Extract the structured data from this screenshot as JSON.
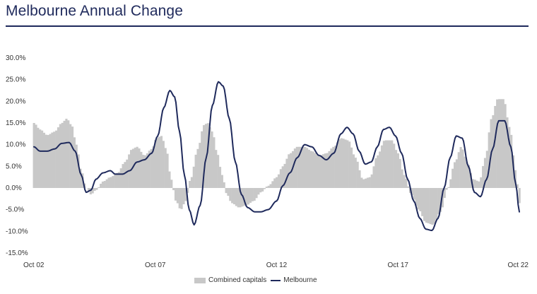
{
  "title": "Melbourne Annual Change",
  "chart_data": {
    "type": "area",
    "title": "Melbourne Annual Change",
    "ylim": [
      -15,
      30
    ],
    "yticks": [
      "30.0%",
      "25.0%",
      "20.0%",
      "15.0%",
      "10.0%",
      "5.0%",
      "0.0%",
      "-5.0%",
      "-10.0%",
      "-15.0%"
    ],
    "ytick_values": [
      30,
      25,
      20,
      15,
      10,
      5,
      0,
      -5,
      -10,
      -15
    ],
    "xticks": [
      "Oct 02",
      "Oct 07",
      "Oct 12",
      "Oct 17",
      "Oct 22"
    ],
    "xtick_values": [
      2002.75,
      2007.75,
      2012.75,
      2017.75,
      2022.75
    ],
    "xlim": [
      2002.75,
      2022.75
    ],
    "legend_position": "bottom-center",
    "series": [
      {
        "name": "Combined capitals",
        "style": "bars",
        "color": "#c8c8c8",
        "points": [
          [
            2002.75,
            15.0
          ],
          [
            2003.0,
            13.5
          ],
          [
            2003.3,
            12.2
          ],
          [
            2003.6,
            13.0
          ],
          [
            2003.9,
            15.0
          ],
          [
            2004.1,
            16.0
          ],
          [
            2004.3,
            14.5
          ],
          [
            2004.5,
            10.0
          ],
          [
            2004.7,
            4.0
          ],
          [
            2004.9,
            0.0
          ],
          [
            2005.1,
            -1.5
          ],
          [
            2005.3,
            -0.5
          ],
          [
            2005.6,
            1.5
          ],
          [
            2005.9,
            2.5
          ],
          [
            2006.2,
            3.5
          ],
          [
            2006.5,
            6.0
          ],
          [
            2006.8,
            9.0
          ],
          [
            2007.0,
            9.5
          ],
          [
            2007.3,
            7.5
          ],
          [
            2007.6,
            9.0
          ],
          [
            2007.8,
            11.5
          ],
          [
            2008.0,
            12.0
          ],
          [
            2008.2,
            9.0
          ],
          [
            2008.4,
            2.0
          ],
          [
            2008.6,
            -3.0
          ],
          [
            2008.8,
            -5.0
          ],
          [
            2009.0,
            -3.0
          ],
          [
            2009.2,
            2.0
          ],
          [
            2009.5,
            9.0
          ],
          [
            2009.75,
            14.5
          ],
          [
            2009.9,
            15.0
          ],
          [
            2010.1,
            13.0
          ],
          [
            2010.3,
            8.0
          ],
          [
            2010.5,
            3.0
          ],
          [
            2010.7,
            -1.5
          ],
          [
            2010.9,
            -3.5
          ],
          [
            2011.2,
            -4.5
          ],
          [
            2011.5,
            -4.0
          ],
          [
            2011.8,
            -3.0
          ],
          [
            2012.1,
            -1.0
          ],
          [
            2012.4,
            0.5
          ],
          [
            2012.75,
            2.5
          ],
          [
            2013.0,
            5.0
          ],
          [
            2013.3,
            8.0
          ],
          [
            2013.6,
            9.5
          ],
          [
            2013.9,
            9.5
          ],
          [
            2014.2,
            8.5
          ],
          [
            2014.5,
            7.5
          ],
          [
            2014.8,
            8.0
          ],
          [
            2015.1,
            9.5
          ],
          [
            2015.4,
            11.5
          ],
          [
            2015.7,
            11.0
          ],
          [
            2016.0,
            7.0
          ],
          [
            2016.3,
            2.0
          ],
          [
            2016.6,
            2.5
          ],
          [
            2016.9,
            7.5
          ],
          [
            2017.2,
            11.0
          ],
          [
            2017.5,
            11.0
          ],
          [
            2017.75,
            8.0
          ],
          [
            2018.0,
            3.0
          ],
          [
            2018.3,
            -1.5
          ],
          [
            2018.6,
            -5.0
          ],
          [
            2018.9,
            -8.0
          ],
          [
            2019.2,
            -8.5
          ],
          [
            2019.5,
            -5.5
          ],
          [
            2019.8,
            0.0
          ],
          [
            2020.1,
            6.0
          ],
          [
            2020.35,
            9.5
          ],
          [
            2020.6,
            6.0
          ],
          [
            2020.85,
            2.0
          ],
          [
            2021.1,
            1.5
          ],
          [
            2021.35,
            7.0
          ],
          [
            2021.6,
            16.0
          ],
          [
            2021.85,
            20.5
          ],
          [
            2022.1,
            20.5
          ],
          [
            2022.35,
            14.0
          ],
          [
            2022.6,
            4.0
          ],
          [
            2022.75,
            -3.5
          ]
        ]
      },
      {
        "name": "Melbourne",
        "style": "line",
        "color": "#1f2a5c",
        "points": [
          [
            2002.75,
            9.5
          ],
          [
            2003.0,
            8.5
          ],
          [
            2003.3,
            8.5
          ],
          [
            2003.6,
            9.0
          ],
          [
            2003.9,
            10.3
          ],
          [
            2004.2,
            10.5
          ],
          [
            2004.45,
            8.5
          ],
          [
            2004.7,
            3.0
          ],
          [
            2004.9,
            -1.0
          ],
          [
            2005.1,
            -0.5
          ],
          [
            2005.3,
            2.0
          ],
          [
            2005.6,
            3.5
          ],
          [
            2005.9,
            4.0
          ],
          [
            2006.1,
            3.2
          ],
          [
            2006.4,
            3.2
          ],
          [
            2006.7,
            4.0
          ],
          [
            2007.0,
            6.0
          ],
          [
            2007.3,
            6.5
          ],
          [
            2007.6,
            8.0
          ],
          [
            2007.85,
            12.0
          ],
          [
            2008.1,
            18.5
          ],
          [
            2008.35,
            22.5
          ],
          [
            2008.55,
            21.0
          ],
          [
            2008.75,
            13.0
          ],
          [
            2008.95,
            3.0
          ],
          [
            2009.15,
            -5.0
          ],
          [
            2009.35,
            -8.5
          ],
          [
            2009.6,
            -4.0
          ],
          [
            2009.85,
            7.0
          ],
          [
            2010.1,
            19.0
          ],
          [
            2010.35,
            24.5
          ],
          [
            2010.55,
            23.5
          ],
          [
            2010.8,
            16.0
          ],
          [
            2011.05,
            6.0
          ],
          [
            2011.3,
            -1.5
          ],
          [
            2011.55,
            -4.5
          ],
          [
            2011.85,
            -5.5
          ],
          [
            2012.1,
            -5.5
          ],
          [
            2012.4,
            -5.0
          ],
          [
            2012.75,
            -3.0
          ],
          [
            2013.0,
            0.5
          ],
          [
            2013.3,
            3.5
          ],
          [
            2013.6,
            7.0
          ],
          [
            2013.9,
            10.0
          ],
          [
            2014.2,
            9.5
          ],
          [
            2014.5,
            7.5
          ],
          [
            2014.8,
            6.5
          ],
          [
            2015.1,
            8.0
          ],
          [
            2015.4,
            12.5
          ],
          [
            2015.65,
            14.0
          ],
          [
            2015.9,
            12.5
          ],
          [
            2016.15,
            8.5
          ],
          [
            2016.4,
            5.5
          ],
          [
            2016.65,
            6.0
          ],
          [
            2016.9,
            9.5
          ],
          [
            2017.15,
            13.5
          ],
          [
            2017.4,
            14.0
          ],
          [
            2017.65,
            12.0
          ],
          [
            2017.9,
            8.0
          ],
          [
            2018.15,
            2.0
          ],
          [
            2018.4,
            -3.0
          ],
          [
            2018.65,
            -7.0
          ],
          [
            2018.9,
            -9.5
          ],
          [
            2019.15,
            -9.8
          ],
          [
            2019.4,
            -7.0
          ],
          [
            2019.65,
            0.0
          ],
          [
            2019.9,
            7.0
          ],
          [
            2020.15,
            12.0
          ],
          [
            2020.4,
            11.5
          ],
          [
            2020.65,
            5.0
          ],
          [
            2020.9,
            -1.0
          ],
          [
            2021.15,
            -2.0
          ],
          [
            2021.4,
            2.0
          ],
          [
            2021.65,
            9.0
          ],
          [
            2021.9,
            15.5
          ],
          [
            2022.15,
            15.5
          ],
          [
            2022.4,
            9.5
          ],
          [
            2022.6,
            1.0
          ],
          [
            2022.75,
            -5.5
          ]
        ]
      }
    ]
  }
}
